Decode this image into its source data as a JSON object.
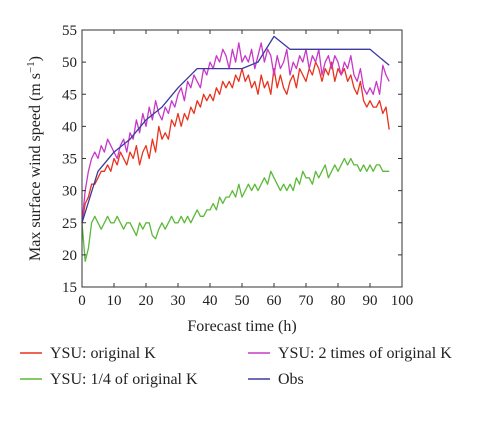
{
  "colors": {
    "red": "#e8321e",
    "green": "#5cb93a",
    "magenta": "#c838c8",
    "blue": "#3a3aa0",
    "axis": "#333333"
  },
  "chart_data": {
    "type": "line",
    "title": "",
    "xlabel": "Forecast time (h)",
    "ylabel": "Max surface wind speed (m s",
    "ylabel_sup": "−1",
    "ylabel_close": ")",
    "xlim": [
      0,
      100
    ],
    "ylim": [
      15,
      55
    ],
    "xticks": [
      "0",
      "10",
      "20",
      "30",
      "40",
      "50",
      "60",
      "70",
      "80",
      "90",
      "100"
    ],
    "yticks": [
      "15",
      "20",
      "25",
      "30",
      "35",
      "40",
      "45",
      "50",
      "55"
    ],
    "legend_placement": "bottom",
    "grid": false,
    "series": [
      {
        "name": "YSU: original K",
        "color_key": "red",
        "x": [
          0,
          1,
          2,
          3,
          4,
          5,
          6,
          7,
          8,
          9,
          10,
          11,
          12,
          13,
          14,
          15,
          16,
          17,
          18,
          19,
          20,
          21,
          22,
          23,
          24,
          25,
          26,
          27,
          28,
          29,
          30,
          31,
          32,
          33,
          34,
          35,
          36,
          37,
          38,
          39,
          40,
          41,
          42,
          43,
          44,
          45,
          46,
          47,
          48,
          49,
          50,
          51,
          52,
          53,
          54,
          55,
          56,
          57,
          58,
          59,
          60,
          61,
          62,
          63,
          64,
          65,
          66,
          67,
          68,
          69,
          70,
          71,
          72,
          73,
          74,
          75,
          76,
          77,
          78,
          79,
          80,
          81,
          82,
          83,
          84,
          85,
          86,
          87,
          88,
          89,
          90,
          91,
          92,
          93,
          94,
          95,
          96
        ],
        "y": [
          25,
          28,
          29,
          31,
          31,
          32,
          33,
          33,
          34,
          33,
          35,
          34,
          36,
          35,
          34,
          36,
          35,
          37,
          34,
          36,
          37,
          35,
          38,
          36,
          40,
          38,
          39,
          38,
          41,
          40,
          42,
          40,
          42,
          41,
          43,
          42,
          44,
          43,
          45,
          44,
          45,
          44,
          46,
          45,
          47,
          46,
          47,
          46,
          48,
          47,
          49,
          47,
          48,
          46,
          47,
          45,
          48,
          46,
          47,
          45,
          49,
          46,
          48,
          46,
          45,
          47,
          48,
          46,
          49,
          48,
          47,
          49,
          48,
          50,
          49,
          47,
          49,
          48,
          50,
          47,
          49,
          48,
          49,
          47,
          48,
          46,
          45,
          47,
          44,
          43,
          44,
          43,
          43,
          44,
          42,
          43,
          39.5
        ]
      },
      {
        "name": "YSU: 2 times of original K",
        "color_key": "magenta",
        "x": [
          0,
          1,
          2,
          3,
          4,
          5,
          6,
          7,
          8,
          9,
          10,
          11,
          12,
          13,
          14,
          15,
          16,
          17,
          18,
          19,
          20,
          21,
          22,
          23,
          24,
          25,
          26,
          27,
          28,
          29,
          30,
          31,
          32,
          33,
          34,
          35,
          36,
          37,
          38,
          39,
          40,
          41,
          42,
          43,
          44,
          45,
          46,
          47,
          48,
          49,
          50,
          51,
          52,
          53,
          54,
          55,
          56,
          57,
          58,
          59,
          60,
          61,
          62,
          63,
          64,
          65,
          66,
          67,
          68,
          69,
          70,
          71,
          72,
          73,
          74,
          75,
          76,
          77,
          78,
          79,
          80,
          81,
          82,
          83,
          84,
          85,
          86,
          87,
          88,
          89,
          90,
          91,
          92,
          93,
          94,
          95,
          96
        ],
        "y": [
          25,
          30,
          33,
          35,
          36,
          35,
          37,
          36,
          38,
          37,
          36,
          35,
          37,
          38,
          36,
          39,
          38,
          41,
          39,
          42,
          40,
          43,
          41,
          44,
          42,
          41,
          43,
          42,
          44,
          43,
          45,
          46,
          44,
          47,
          46,
          48,
          47,
          46,
          49,
          48,
          50,
          49,
          51,
          50,
          52,
          51,
          49,
          52,
          50,
          53,
          50,
          51,
          50,
          52,
          49,
          51,
          53,
          50,
          52,
          51,
          48,
          51,
          49,
          50,
          52,
          48,
          50,
          49,
          51,
          50,
          52,
          49,
          51,
          50,
          52,
          48,
          50,
          51,
          49,
          51,
          50,
          48,
          50,
          49,
          51,
          48,
          47,
          49,
          46,
          45,
          46,
          45,
          47,
          45,
          49.5,
          48,
          47
        ]
      },
      {
        "name": "YSU: 1/4 of original K",
        "color_key": "green",
        "x": [
          0,
          1,
          2,
          3,
          4,
          5,
          6,
          7,
          8,
          9,
          10,
          11,
          12,
          13,
          14,
          15,
          16,
          17,
          18,
          19,
          20,
          21,
          22,
          23,
          24,
          25,
          26,
          27,
          28,
          29,
          30,
          31,
          32,
          33,
          34,
          35,
          36,
          37,
          38,
          39,
          40,
          41,
          42,
          43,
          44,
          45,
          46,
          47,
          48,
          49,
          50,
          51,
          52,
          53,
          54,
          55,
          56,
          57,
          58,
          59,
          60,
          61,
          62,
          63,
          64,
          65,
          66,
          67,
          68,
          69,
          70,
          71,
          72,
          73,
          74,
          75,
          76,
          77,
          78,
          79,
          80,
          81,
          82,
          83,
          84,
          85,
          86,
          87,
          88,
          89,
          90,
          91,
          92,
          93,
          94,
          95,
          96
        ],
        "y": [
          25,
          19,
          21,
          25,
          26,
          25,
          24,
          25,
          26,
          25,
          25,
          26,
          25,
          24,
          25,
          25,
          24,
          23,
          25,
          24,
          25,
          25,
          23,
          22.5,
          24,
          25,
          24,
          25,
          26,
          25,
          25,
          26,
          25,
          26,
          25,
          26,
          27,
          26,
          26,
          27,
          27,
          28,
          27,
          29,
          28,
          29,
          29,
          30,
          29,
          31,
          29,
          30,
          31,
          30,
          31,
          30,
          31,
          32,
          31,
          33,
          32,
          31,
          30,
          31,
          30,
          31,
          30,
          32,
          31,
          33,
          32,
          32,
          31,
          33,
          32,
          33,
          34,
          32,
          33,
          34,
          33,
          34,
          35,
          34,
          35,
          34,
          34,
          33,
          34,
          33,
          34,
          33,
          34,
          34,
          33,
          33,
          33
        ]
      },
      {
        "name": "Obs",
        "color_key": "blue",
        "x": [
          0,
          5,
          10,
          15,
          20,
          25,
          30,
          36,
          40,
          45,
          50,
          55,
          60,
          65,
          70,
          75,
          80,
          85,
          90,
          96
        ],
        "y": [
          25,
          33,
          36,
          38,
          41,
          43,
          46,
          49,
          49,
          49,
          49,
          50,
          54,
          52,
          52,
          52,
          52,
          52,
          52,
          49.5
        ]
      }
    ]
  }
}
